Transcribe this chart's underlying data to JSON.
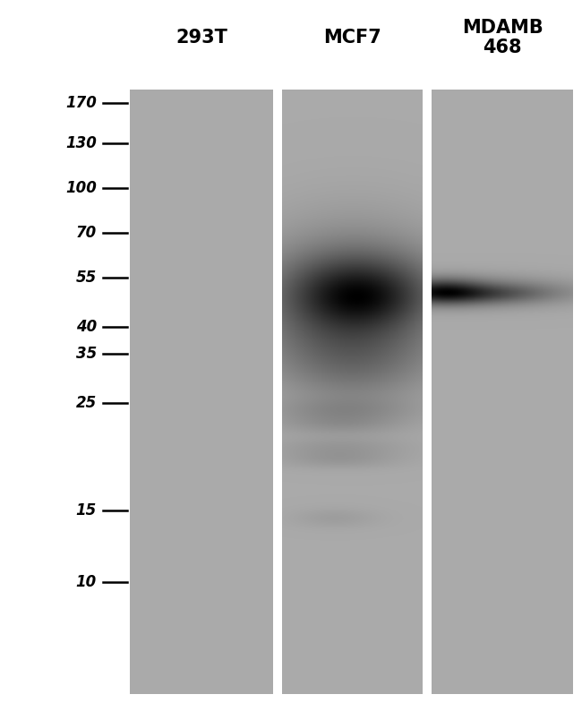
{
  "background_color": "#ffffff",
  "gel_bg": "#aaaaaa",
  "labels": [
    "293T",
    "MCF7",
    "MDAMB\n468"
  ],
  "marker_labels": [
    170,
    130,
    100,
    70,
    55,
    40,
    35,
    25,
    15,
    10
  ],
  "fig_width": 6.5,
  "fig_height": 7.85,
  "label_fontsize": 15,
  "marker_fontsize": 12
}
